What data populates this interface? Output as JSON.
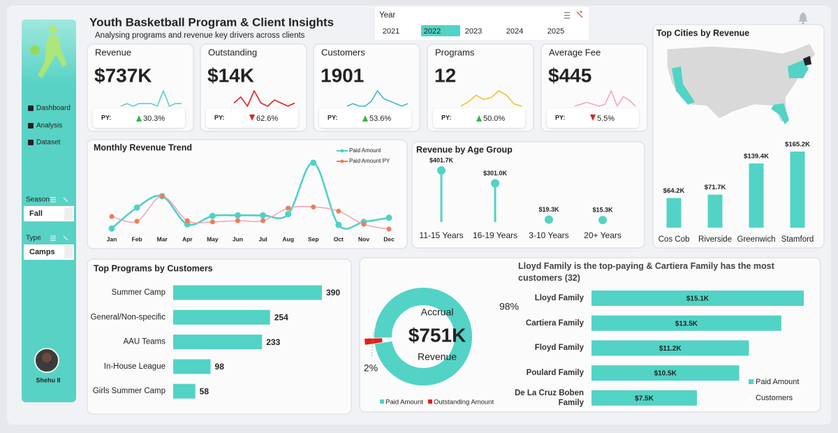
{
  "header": {
    "title": "Youth Basketball Program & Client Insights",
    "subtitle": "Analysing programs and revenue key drivers across clients"
  },
  "year_slicer": {
    "label": "Year",
    "options": [
      "2021",
      "2022",
      "2023",
      "2024",
      "2025"
    ],
    "selected": "2022"
  },
  "sidebar": {
    "nav": [
      "Dashboard",
      "Analysis",
      "Dataset"
    ],
    "filters": [
      {
        "label": "Season",
        "value": "Fall"
      },
      {
        "label": "Type",
        "value": "Camps"
      }
    ],
    "user": "Shehu II"
  },
  "kpis": [
    {
      "label": "Revenue",
      "value": "$737K",
      "py_label": "PY:",
      "change": "30.3%",
      "direction": "up",
      "color": "#52d3c6",
      "trend": [
        2,
        3,
        2,
        3,
        3,
        3,
        2,
        8,
        2,
        3,
        3
      ]
    },
    {
      "label": "Outstanding",
      "value": "$14K",
      "py_label": "PY:",
      "change": "62.6%",
      "direction": "down",
      "color": "#e0201b",
      "trend": [
        4,
        6,
        3,
        8,
        4,
        3,
        5,
        4,
        3,
        4
      ]
    },
    {
      "label": "Customers",
      "value": "1901",
      "py_label": "PY:",
      "change": "53.6%",
      "direction": "up",
      "color": "#3fb7c9",
      "trend": [
        3,
        4,
        3,
        3,
        5,
        9,
        6,
        5,
        4,
        3,
        4
      ]
    },
    {
      "label": "Programs",
      "value": "12",
      "py_label": "PY:",
      "change": "50.0%",
      "direction": "up",
      "color": "#f2c02e",
      "trend": [
        1,
        3,
        6,
        4,
        5,
        8,
        6,
        2,
        1
      ]
    },
    {
      "label": "Average Fee",
      "value": "$445",
      "py_label": "PY:",
      "change": "5.5%",
      "direction": "down",
      "color": "#f4a6c0",
      "trend": [
        2,
        3,
        4,
        3,
        2,
        3,
        10,
        2,
        7,
        5,
        2
      ]
    }
  ],
  "chart_data": [
    {
      "type": "line",
      "title": "Monthly Revenue Trend",
      "categories": [
        "Jan",
        "Feb",
        "Mar",
        "Apr",
        "May",
        "Jun",
        "Jul",
        "Aug",
        "Sep",
        "Oct",
        "Nov",
        "Dec"
      ],
      "series": [
        {
          "name": "Paid Amount",
          "color": "#4fd1c5",
          "values": [
            15,
            50,
            69,
            22,
            36,
            37,
            37,
            39,
            125,
            21,
            26,
            33
          ]
        },
        {
          "name": "Paid Amount PY",
          "color": "#ee7d4f",
          "values": [
            35,
            27,
            69,
            28,
            26,
            28,
            28,
            49,
            51,
            44,
            22,
            14
          ]
        }
      ]
    },
    {
      "type": "lollipop",
      "title": "Revenue by Age Group",
      "categories": [
        "11-15 Years",
        "16-19 Years",
        "3-10 Years",
        "20+ Years"
      ],
      "values": [
        401700,
        301000,
        19300,
        15300
      ],
      "value_labels": [
        "$401.7K",
        "$301.0K",
        "$19.3K",
        "$15.3K"
      ],
      "color": "#52d3c6"
    },
    {
      "type": "bar",
      "title": "Top Cities by Revenue",
      "categories": [
        "Cos Cob",
        "Riverside",
        "Greenwich",
        "Stamford"
      ],
      "values": [
        64200,
        71700,
        139400,
        165200
      ],
      "value_labels": [
        "$64.2K",
        "$71.7K",
        "$139.4K",
        "$165.2K"
      ],
      "color": "#52d3c6"
    },
    {
      "type": "hbar",
      "title": "Top Programs by Customers",
      "categories": [
        "Summer Camp",
        "General/Non-specific",
        "AAU Teams",
        "In-House League",
        "Girls Summer Camp"
      ],
      "values": [
        390,
        254,
        233,
        98,
        58
      ],
      "color": "#52d3c6"
    },
    {
      "type": "donut",
      "center_top": "Accrual",
      "center_value": "$751K",
      "center_bottom": "Revenue",
      "categories": [
        "Paid Amount",
        "Outstanding Amount"
      ],
      "values": [
        98,
        2
      ],
      "value_labels": [
        "98%",
        "2%"
      ],
      "colors": [
        "#52d3c6",
        "#e0201b"
      ]
    },
    {
      "type": "client-bar",
      "title": "Lloyd Family is the top-paying & Cartiera Family has the most customers (32)",
      "categories": [
        "Lloyd Family",
        "Cartiera Family",
        "Floyd Family",
        "Poulard Family",
        "De La Cruz Boben Family"
      ],
      "series": [
        {
          "name": "Paid Amount",
          "color": "#52d3c6",
          "values": [
            15100,
            13500,
            11200,
            10500,
            7500
          ],
          "value_labels": [
            "$15.1K",
            "$13.5K",
            "$11.2K",
            "$10.5K",
            "$7.5K"
          ]
        },
        {
          "name": "Customers",
          "color": "#ffffff",
          "values": [
            null,
            null,
            null,
            null,
            null
          ]
        }
      ]
    }
  ]
}
